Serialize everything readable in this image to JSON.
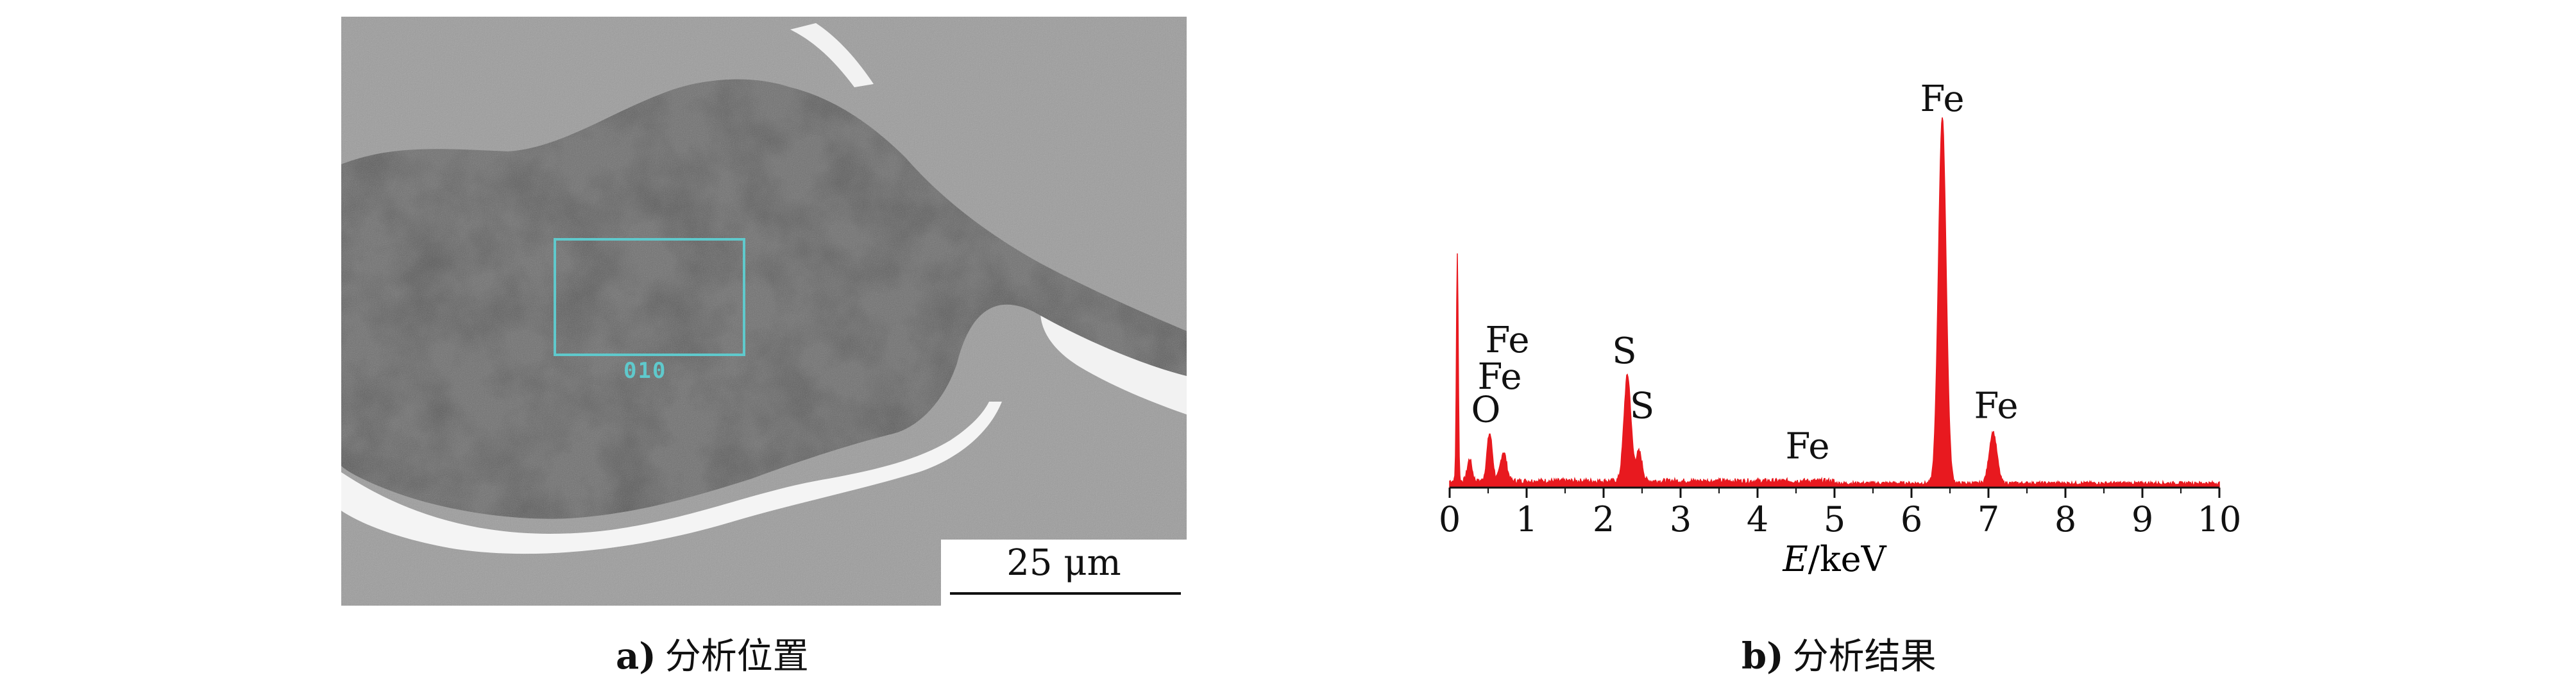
{
  "panel_a": {
    "caption_letter": "a)",
    "caption_text": "分析位置",
    "scale_bar_label": "25 μm",
    "roi_label": "010",
    "roi_color": "#5fc9cc"
  },
  "panel_b": {
    "caption_letter": "b)",
    "caption_text": "分析结果"
  },
  "chart_data": {
    "type": "line",
    "title": "",
    "xlabel_italic": "E",
    "xlabel_unit": "/keV",
    "xlim": [
      0,
      10
    ],
    "ylim": [
      0,
      100
    ],
    "x_ticks": [
      "0",
      "1",
      "2",
      "3",
      "4",
      "5",
      "6",
      "7",
      "8",
      "9",
      "10"
    ],
    "series_color": "#e8191f",
    "baseline": 1.5,
    "peaks": [
      {
        "x": 0.1,
        "y": 62,
        "w": 0.012
      },
      {
        "x": 0.26,
        "y": 6,
        "w": 0.03
      },
      {
        "x": 0.52,
        "y": 13,
        "w": 0.035
      },
      {
        "x": 0.7,
        "y": 8,
        "w": 0.04
      },
      {
        "x": 2.31,
        "y": 29,
        "w": 0.045
      },
      {
        "x": 2.46,
        "y": 8,
        "w": 0.04
      },
      {
        "x": 6.4,
        "y": 100,
        "w": 0.05
      },
      {
        "x": 7.06,
        "y": 14,
        "w": 0.05
      }
    ],
    "annotations": [
      {
        "text": "Fe",
        "x": 0.75,
        "y": 37
      },
      {
        "text": "Fe",
        "x": 0.65,
        "y": 27
      },
      {
        "text": "O",
        "x": 0.47,
        "y": 18
      },
      {
        "text": "S",
        "x": 2.27,
        "y": 34
      },
      {
        "text": "S",
        "x": 2.5,
        "y": 19
      },
      {
        "text": "Fe",
        "x": 4.65,
        "y": 8
      },
      {
        "text": "Fe",
        "x": 6.4,
        "y": 103
      },
      {
        "text": "Fe",
        "x": 7.1,
        "y": 19
      }
    ]
  }
}
